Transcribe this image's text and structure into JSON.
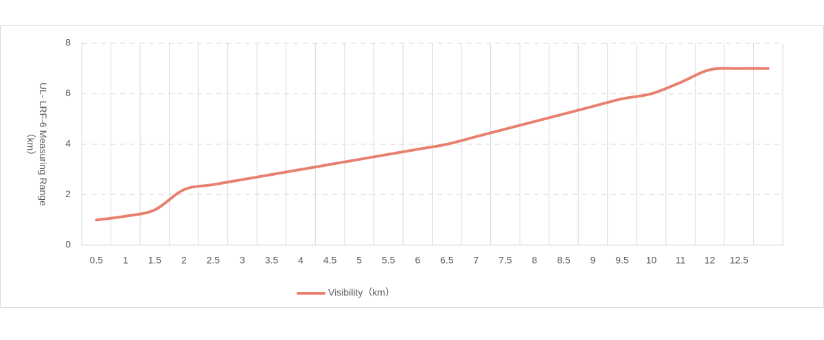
{
  "chart_data": {
    "type": "line",
    "y_label": [
      "UL- LRF-6  Measuring Range",
      "（km）"
    ],
    "categories": [
      "0.5",
      "1",
      "1.5",
      "2",
      "2.5",
      "3",
      "3.5",
      "4",
      "4.5",
      "5",
      "5.5",
      "6",
      "6.5",
      "7",
      "7.5",
      "8",
      "8.5",
      "9",
      "9.5",
      "10",
      "11",
      "12",
      "12.5",
      null
    ],
    "series": [
      {
        "name": "Visibility（km）",
        "color": "#e8806e",
        "values": [
          1.0,
          1.15,
          1.4,
          2.2,
          2.4,
          2.6,
          2.8,
          3.0,
          3.2,
          3.4,
          3.6,
          3.8,
          4.0,
          4.3,
          4.6,
          4.9,
          5.2,
          5.5,
          5.8,
          6.0,
          6.45,
          6.95,
          7.0,
          7.0
        ]
      }
    ],
    "ylim": [
      0,
      8
    ],
    "yticks": [
      0,
      2,
      4,
      6,
      8
    ],
    "grid": true,
    "legend": "bottom"
  }
}
